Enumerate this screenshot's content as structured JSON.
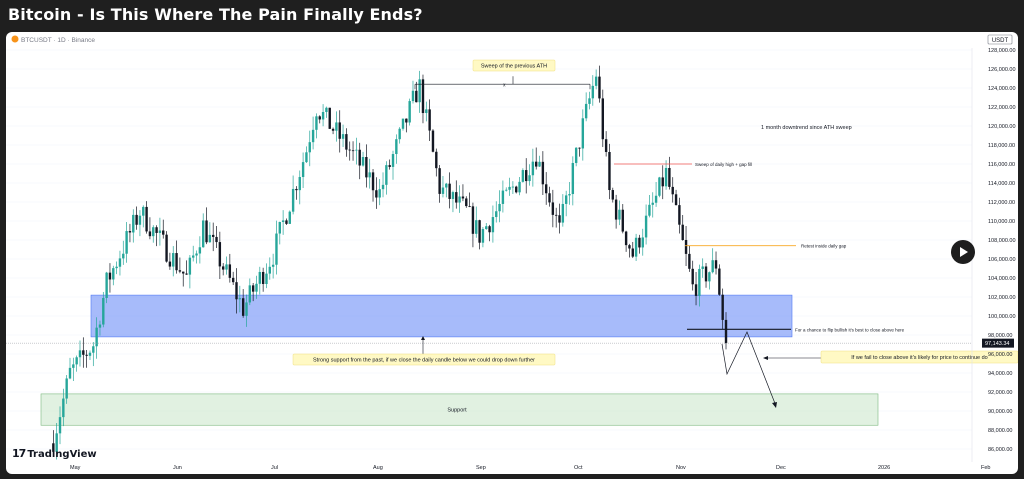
{
  "title": "Bitcoin - Is This Where The Pain Finally Ends?",
  "symbol": "BTCUSDT · 1D · Binance",
  "currency": "USDT",
  "brand": "TradingView",
  "colors": {
    "up": "#26a69a",
    "down": "#131722",
    "support_zone": "#4f78f5",
    "lower_support": "#c8e6c9",
    "price_tag": "#131722"
  },
  "chart_data": {
    "type": "candlestick",
    "x_axis": {
      "ticks": [
        "May",
        "Jun",
        "Jul",
        "Aug",
        "Sep",
        "Oct",
        "Nov",
        "Dec",
        "2026",
        "Feb"
      ]
    },
    "y_axis": {
      "range": [
        85000,
        129000
      ],
      "ticks": [
        "128,000.00",
        "126,000.00",
        "124,000.00",
        "122,000.00",
        "120,000.00",
        "118,000.00",
        "116,000.00",
        "114,000.00",
        "112,000.00",
        "110,000.00",
        "108,000.00",
        "106,000.00",
        "104,000.00",
        "102,000.00",
        "100,000.00",
        "98,000.00",
        "96,000.00",
        "94,000.00",
        "92,000.00",
        "90,000.00",
        "88,000.00",
        "86,000.00"
      ]
    },
    "last_price": "97,143.34",
    "approx_close_path": [
      [
        "Apr 27",
        87000
      ],
      [
        "May 1",
        94000
      ],
      [
        "May 8",
        97000
      ],
      [
        "May 12",
        103500
      ],
      [
        "May 22",
        111000
      ],
      [
        "Jun 5",
        104000
      ],
      [
        "Jun 10",
        109500
      ],
      [
        "Jun 22",
        100800
      ],
      [
        "Jul 1",
        106500
      ],
      [
        "Jul 11",
        117500
      ],
      [
        "Jul 14",
        122000
      ],
      [
        "Jul 25",
        117000
      ],
      [
        "Aug 2",
        113000
      ],
      [
        "Aug 13",
        123500
      ],
      [
        "Aug 14",
        124100
      ],
      [
        "Aug 20",
        113500
      ],
      [
        "Aug 28",
        111000
      ],
      [
        "Sep 1",
        108500
      ],
      [
        "Sep 18",
        117000
      ],
      [
        "Sep 25",
        109000
      ],
      [
        "Oct 2",
        120000
      ],
      [
        "Oct 6",
        125500
      ],
      [
        "Oct 10",
        113000
      ],
      [
        "Oct 17",
        106500
      ],
      [
        "Oct 27",
        115000
      ],
      [
        "Nov 4",
        103000
      ],
      [
        "Nov 11",
        105500
      ],
      [
        "Nov 14",
        97140
      ]
    ],
    "zones": [
      {
        "name": "support-zone",
        "from": 97800,
        "to": 102200
      },
      {
        "name": "lower-support",
        "from": 88500,
        "to": 91800,
        "label": "Support"
      }
    ],
    "levels": [
      {
        "name": "previous-ath",
        "price": 124400
      },
      {
        "name": "daily-high-sweep",
        "price": 116000
      },
      {
        "name": "daily-gap-retest",
        "price": 107400
      },
      {
        "name": "flip-level",
        "price": 98600
      }
    ],
    "annotations": {
      "sweep_ath": "Sweep of the previous ATH",
      "ath_marker": "x",
      "downtrend": "1 month downtrend since ATH sweep",
      "sweep_daily_high": "Sweep of daily high + gap fill",
      "retest_gap": "Retest inside daily gap",
      "flip_bullish": "For a chance to flip bullish it's best to close above here",
      "strong_support": "Strong support from the past, if we close the daily candle below we could drop down further",
      "fail_close": "If we fail to close above it's likely for price to continue do"
    }
  }
}
